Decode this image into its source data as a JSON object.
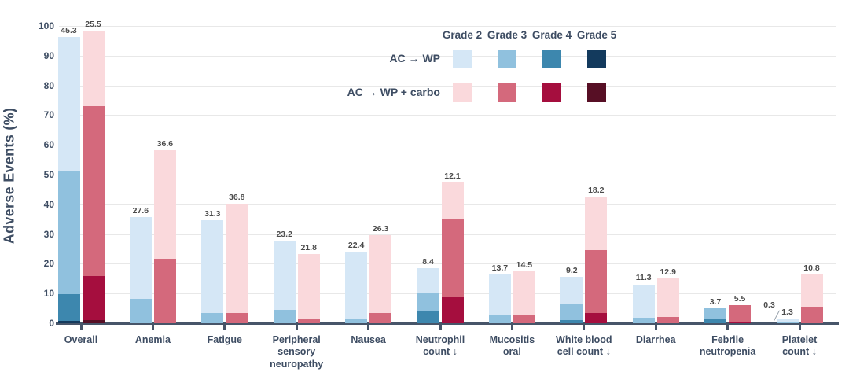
{
  "y_axis": {
    "title": "Adverse Events (%)",
    "min": 0,
    "max": 100,
    "step": 10,
    "tick_labels": [
      "0",
      "10",
      "20",
      "30",
      "40",
      "50",
      "60",
      "70",
      "80",
      "90",
      "100"
    ]
  },
  "legend": {
    "grade_headers": [
      "Grade 2",
      "Grade 3",
      "Grade 4",
      "Grade 5"
    ],
    "arms": [
      {
        "name": "AC → WP",
        "colors": {
          "Grade 2": "#d5e7f6",
          "Grade 3": "#90c1de",
          "Grade 4": "#3d87ae",
          "Grade 5": "#133a5d"
        }
      },
      {
        "name": "AC → WP + carbo",
        "colors": {
          "Grade 2": "#fad9dc",
          "Grade 3": "#d4697c",
          "Grade 4": "#a50e3e",
          "Grade 5": "#570f25"
        }
      }
    ]
  },
  "chart_data": {
    "type": "bar",
    "subtype": "grouped-stacked",
    "title": "",
    "xlabel": "",
    "ylabel": "Adverse Events (%)",
    "ylim": [
      0,
      100
    ],
    "grid": true,
    "legend_position": "top-right",
    "categories": [
      {
        "name": "Overall",
        "label_lines": [
          "Overall"
        ],
        "bars": [
          {
            "arm": "AC → WP",
            "segments": [
              {
                "grade": "Grade 5",
                "value": 0.8,
                "label": "0.8",
                "label_style": "inside-white"
              },
              {
                "grade": "Grade 4",
                "value": 8.9,
                "label": "8.9"
              },
              {
                "grade": "Grade 3",
                "value": 41.3,
                "label": "41.3"
              },
              {
                "grade": "Grade 2",
                "value": 45.3,
                "label": "45.3"
              }
            ]
          },
          {
            "arm": "AC → WP + carbo",
            "segments": [
              {
                "grade": "Grade 5",
                "value": 1.1,
                "label": "1.1",
                "label_style": "inside-white"
              },
              {
                "grade": "Grade 4",
                "value": 14.7,
                "label": "14.7"
              },
              {
                "grade": "Grade 3",
                "value": 57.1,
                "label": "57.1"
              },
              {
                "grade": "Grade 2",
                "value": 25.5,
                "label": "25.5"
              }
            ]
          }
        ]
      },
      {
        "name": "Anemia",
        "label_lines": [
          "Anemia"
        ],
        "bars": [
          {
            "arm": "AC → WP",
            "segments": [
              {
                "grade": "Grade 3",
                "value": 8.2,
                "label": "8.2"
              },
              {
                "grade": "Grade 2",
                "value": 27.6,
                "label": "27.6"
              }
            ]
          },
          {
            "arm": "AC → WP + carbo",
            "segments": [
              {
                "grade": "Grade 3",
                "value": 21.6,
                "label": "21.6"
              },
              {
                "grade": "Grade 2",
                "value": 36.6,
                "label": "36.6"
              }
            ]
          }
        ]
      },
      {
        "name": "Fatigue",
        "label_lines": [
          "Fatigue"
        ],
        "bars": [
          {
            "arm": "AC → WP",
            "segments": [
              {
                "grade": "Grade 3",
                "value": 3.4,
                "label": "3.4"
              },
              {
                "grade": "Grade 2",
                "value": 31.3,
                "label": "31.3"
              }
            ]
          },
          {
            "arm": "AC → WP + carbo",
            "segments": [
              {
                "grade": "Grade 3",
                "value": 3.4,
                "label": "3.4"
              },
              {
                "grade": "Grade 2",
                "value": 36.8,
                "label": "36.8"
              }
            ]
          }
        ]
      },
      {
        "name": "Peripheral sensory neuropathy",
        "label_lines": [
          "Peripheral",
          "sensory",
          "neuropathy"
        ],
        "bars": [
          {
            "arm": "AC → WP",
            "segments": [
              {
                "grade": "Grade 3",
                "value": 4.5,
                "label": "4.5"
              },
              {
                "grade": "Grade 2",
                "value": 23.2,
                "label": "23.2"
              }
            ]
          },
          {
            "arm": "AC → WP + carbo",
            "segments": [
              {
                "grade": "Grade 3",
                "value": 1.6,
                "label": "1.6"
              },
              {
                "grade": "Grade 2",
                "value": 21.8,
                "label": "21.8"
              }
            ]
          }
        ]
      },
      {
        "name": "Nausea",
        "label_lines": [
          "Nausea"
        ],
        "bars": [
          {
            "arm": "AC → WP",
            "segments": [
              {
                "grade": "Grade 3",
                "value": 1.6,
                "label": "1.6"
              },
              {
                "grade": "Grade 2",
                "value": 22.4,
                "label": "22.4"
              }
            ]
          },
          {
            "arm": "AC → WP + carbo",
            "segments": [
              {
                "grade": "Grade 3",
                "value": 3.4,
                "label": "3.4"
              },
              {
                "grade": "Grade 2",
                "value": 26.3,
                "label": "26.3"
              }
            ]
          }
        ]
      },
      {
        "name": "Neutrophil count ↓",
        "label_lines": [
          "Neutrophil",
          "count ↓"
        ],
        "bars": [
          {
            "arm": "AC → WP",
            "segments": [
              {
                "grade": "Grade 4",
                "value": 3.9,
                "label": "3.9"
              },
              {
                "grade": "Grade 3",
                "value": 6.3,
                "label": "6.3"
              },
              {
                "grade": "Grade 2",
                "value": 8.4,
                "label": "8.4"
              }
            ]
          },
          {
            "arm": "AC → WP + carbo",
            "segments": [
              {
                "grade": "Grade 4",
                "value": 8.7,
                "label": "8.7"
              },
              {
                "grade": "Grade 3",
                "value": 26.6,
                "label": "26.6"
              },
              {
                "grade": "Grade 2",
                "value": 12.1,
                "label": "12.1"
              }
            ]
          }
        ]
      },
      {
        "name": "Mucositis oral",
        "label_lines": [
          "Mucositis",
          "oral"
        ],
        "bars": [
          {
            "arm": "AC → WP",
            "segments": [
              {
                "grade": "Grade 3",
                "value": 2.6,
                "label": "2.6"
              },
              {
                "grade": "Grade 2",
                "value": 13.7,
                "label": "13.7"
              }
            ]
          },
          {
            "arm": "AC → WP + carbo",
            "segments": [
              {
                "grade": "Grade 3",
                "value": 2.9,
                "label": "2.9"
              },
              {
                "grade": "Grade 2",
                "value": 14.5,
                "label": "14.5"
              }
            ]
          }
        ]
      },
      {
        "name": "White blood cell count ↓",
        "label_lines": [
          "White blood",
          "cell count ↓"
        ],
        "bars": [
          {
            "arm": "AC → WP",
            "segments": [
              {
                "grade": "Grade 4",
                "value": 1.1,
                "label": "1.1"
              },
              {
                "grade": "Grade 3",
                "value": 5.3,
                "label": "5.3"
              },
              {
                "grade": "Grade 2",
                "value": 9.2,
                "label": "9.2"
              }
            ]
          },
          {
            "arm": "AC → WP + carbo",
            "segments": [
              {
                "grade": "Grade 4",
                "value": 3.4,
                "label": "3.4"
              },
              {
                "grade": "Grade 3",
                "value": 21.1,
                "label": "21.1"
              },
              {
                "grade": "Grade 2",
                "value": 18.2,
                "label": "18.2"
              }
            ]
          }
        ]
      },
      {
        "name": "Diarrhea",
        "label_lines": [
          "Diarrhea"
        ],
        "bars": [
          {
            "arm": "AC → WP",
            "segments": [
              {
                "grade": "Grade 3",
                "value": 1.8,
                "label": "1.8"
              },
              {
                "grade": "Grade 2",
                "value": 11.3,
                "label": "11.3"
              }
            ]
          },
          {
            "arm": "AC → WP + carbo",
            "segments": [
              {
                "grade": "Grade 3",
                "value": 2.1,
                "label": "2.1"
              },
              {
                "grade": "Grade 2",
                "value": 12.9,
                "label": "12.9"
              }
            ]
          }
        ]
      },
      {
        "name": "Febrile neutropenia",
        "label_lines": [
          "Febrile",
          "neutropenia"
        ],
        "bars": [
          {
            "arm": "AC → WP",
            "segments": [
              {
                "grade": "Grade 4",
                "value": 1.3,
                "label": "1.3"
              },
              {
                "grade": "Grade 3",
                "value": 3.7,
                "label": "3.7"
              }
            ]
          },
          {
            "arm": "AC → WP + carbo",
            "segments": [
              {
                "grade": "Grade 4",
                "value": 0.5,
                "label": "0.5",
                "label_style": "inside-white"
              },
              {
                "grade": "Grade 3",
                "value": 5.5,
                "label": "5.5"
              }
            ]
          }
        ]
      },
      {
        "name": "Platelet count ↓",
        "label_lines": [
          "Platelet",
          "count ↓"
        ],
        "bars": [
          {
            "arm": "AC → WP",
            "segments": [
              {
                "grade": "Grade 3",
                "value": 0.3,
                "label": "0.3",
                "label_style": "leader"
              },
              {
                "grade": "Grade 2",
                "value": 1.3,
                "label": "1.3"
              }
            ]
          },
          {
            "arm": "AC → WP + carbo",
            "segments": [
              {
                "grade": "Grade 3",
                "value": 5.5,
                "label": "5.5"
              },
              {
                "grade": "Grade 2",
                "value": 10.8,
                "label": "10.8"
              }
            ]
          }
        ]
      }
    ]
  },
  "style_colors": {
    "axis_text": "#3e4d63",
    "value_label": "#4b4b4b",
    "gridline": "#e8e8e8",
    "baseline": "#475569"
  }
}
